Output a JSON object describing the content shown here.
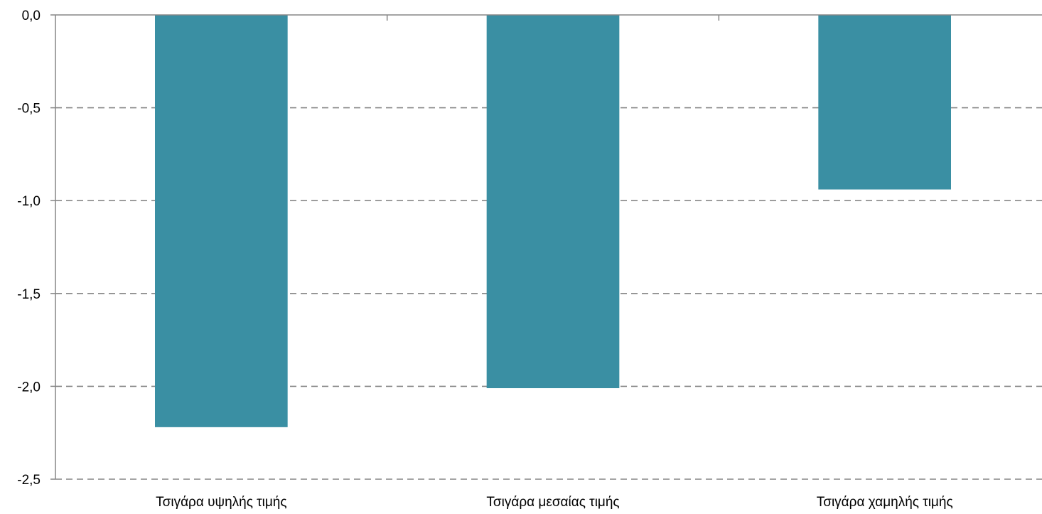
{
  "chart_data": {
    "type": "bar",
    "categories": [
      "Τσιγάρα υψηλής τιμής",
      "Τσιγάρα μεσαίας τιμής",
      "Τσιγάρα χαμηλής τιμής"
    ],
    "values": [
      -2.22,
      -2.01,
      -0.94
    ],
    "ylim": [
      -2.5,
      0.0
    ],
    "y_ticks": [
      0.0,
      -0.5,
      -1.0,
      -1.5,
      -2.0,
      -2.5
    ],
    "y_tick_labels": [
      "0,0",
      "-0,5",
      "-1,0",
      "-1,5",
      "-2,0",
      "-2,5"
    ],
    "grid": true,
    "grid_style": "dashed",
    "bar_color": "#3A8FA3",
    "axis_color": "#868686",
    "grid_color": "#868686"
  }
}
